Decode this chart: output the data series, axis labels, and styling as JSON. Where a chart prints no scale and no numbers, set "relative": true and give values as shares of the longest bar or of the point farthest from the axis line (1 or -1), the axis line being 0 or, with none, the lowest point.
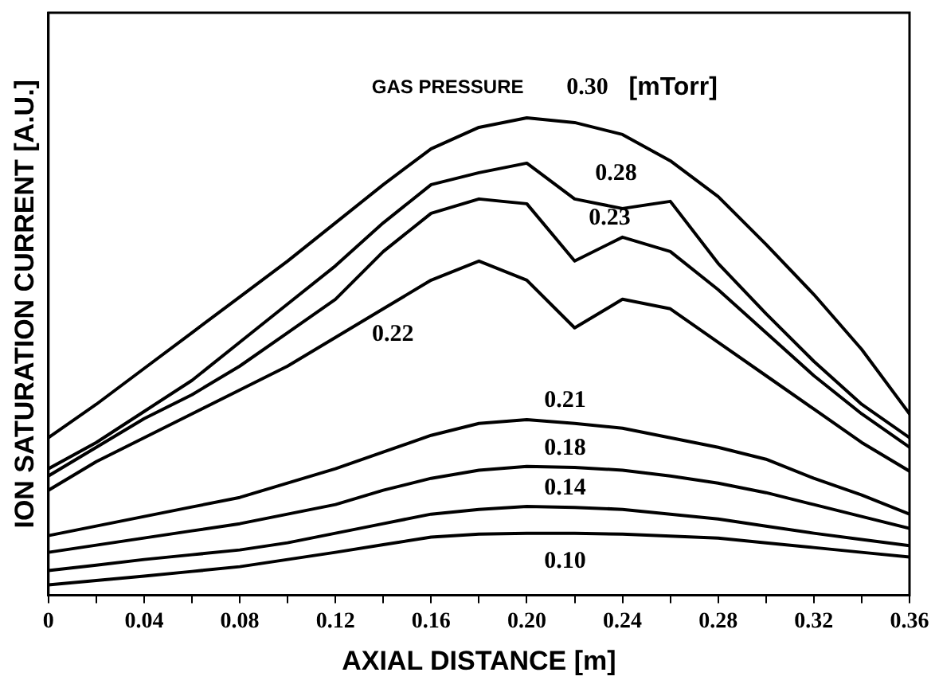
{
  "chart_data": {
    "type": "line",
    "relative": true,
    "xlabel": "AXIAL DISTANCE [m]",
    "ylabel": "ION SATURATION CURRENT [A.U.]",
    "annotations": [
      "GAS PRESSURE",
      "[mTorr]"
    ],
    "x": [
      0,
      0.02,
      0.04,
      0.06,
      0.08,
      0.1,
      0.12,
      0.14,
      0.16,
      0.18,
      0.2,
      0.22,
      0.24,
      0.26,
      0.28,
      0.3,
      0.32,
      0.34,
      0.36
    ],
    "xlim": [
      0,
      0.36
    ],
    "xticks": [
      0,
      {
        "value": 0.02,
        "label": null
      },
      {
        "value": 0.04,
        "label": "0.04"
      },
      {
        "value": 0.06,
        "label": null
      },
      {
        "value": 0.08,
        "label": "0.08"
      },
      {
        "value": 0.1,
        "label": null
      },
      {
        "value": 0.12,
        "label": "0.12"
      },
      {
        "value": 0.14,
        "label": null
      },
      {
        "value": 0.16,
        "label": "0.16"
      },
      {
        "value": 0.18,
        "label": null
      },
      {
        "value": 0.2,
        "label": "0.20"
      },
      {
        "value": 0.22,
        "label": null
      },
      {
        "value": 0.24,
        "label": "0.24"
      },
      {
        "value": 0.26,
        "label": null
      },
      {
        "value": 0.28,
        "label": "0.28"
      },
      {
        "value": 0.3,
        "label": null
      },
      {
        "value": 0.32,
        "label": "0.32"
      },
      {
        "value": 0.34,
        "label": null
      },
      {
        "value": 0.36,
        "label": "0.36"
      }
    ],
    "grid": false,
    "legend": false,
    "marker": "none",
    "line_style": "solid",
    "series": [
      {
        "name": "0.30",
        "color": "#000000",
        "values": [
          0.33,
          0.4,
          0.475,
          0.55,
          0.625,
          0.7,
          0.78,
          0.86,
          0.935,
          0.98,
          1,
          0.99,
          0.965,
          0.91,
          0.835,
          0.735,
          0.63,
          0.515,
          0.38
        ]
      },
      {
        "name": "0.28",
        "color": "#000000",
        "values": [
          0.265,
          0.32,
          0.385,
          0.45,
          0.53,
          0.61,
          0.69,
          0.78,
          0.86,
          0.885,
          0.905,
          0.83,
          0.81,
          0.825,
          0.695,
          0.59,
          0.49,
          0.4,
          0.33
        ]
      },
      {
        "name": "0.23",
        "color": "#000000",
        "values": [
          0.25,
          0.31,
          0.37,
          0.42,
          0.48,
          0.55,
          0.62,
          0.72,
          0.8,
          0.83,
          0.82,
          0.7,
          0.75,
          0.72,
          0.64,
          0.55,
          0.46,
          0.38,
          0.31
        ]
      },
      {
        "name": "0.22",
        "color": "#000000",
        "values": [
          0.22,
          0.28,
          0.33,
          0.38,
          0.43,
          0.48,
          0.54,
          0.6,
          0.66,
          0.7,
          0.66,
          0.56,
          0.62,
          0.6,
          0.53,
          0.46,
          0.39,
          0.32,
          0.26
        ]
      },
      {
        "name": "0.21",
        "color": "#000000",
        "values": [
          0.125,
          0.145,
          0.165,
          0.185,
          0.205,
          0.235,
          0.265,
          0.3,
          0.335,
          0.36,
          0.368,
          0.36,
          0.35,
          0.33,
          0.31,
          0.285,
          0.245,
          0.21,
          0.17
        ]
      },
      {
        "name": "0.18",
        "color": "#000000",
        "values": [
          0.09,
          0.105,
          0.12,
          0.135,
          0.15,
          0.17,
          0.19,
          0.22,
          0.245,
          0.262,
          0.27,
          0.268,
          0.262,
          0.25,
          0.235,
          0.215,
          0.19,
          0.165,
          0.14
        ]
      },
      {
        "name": "0.14",
        "color": "#000000",
        "values": [
          0.052,
          0.063,
          0.075,
          0.085,
          0.095,
          0.11,
          0.13,
          0.15,
          0.17,
          0.18,
          0.186,
          0.184,
          0.18,
          0.17,
          0.16,
          0.145,
          0.13,
          0.117,
          0.104
        ]
      },
      {
        "name": "0.10",
        "color": "#000000",
        "values": [
          0.022,
          0.031,
          0.04,
          0.05,
          0.06,
          0.075,
          0.09,
          0.106,
          0.122,
          0.128,
          0.13,
          0.13,
          0.128,
          0.124,
          0.12,
          0.11,
          0.1,
          0.09,
          0.08
        ]
      }
    ]
  }
}
